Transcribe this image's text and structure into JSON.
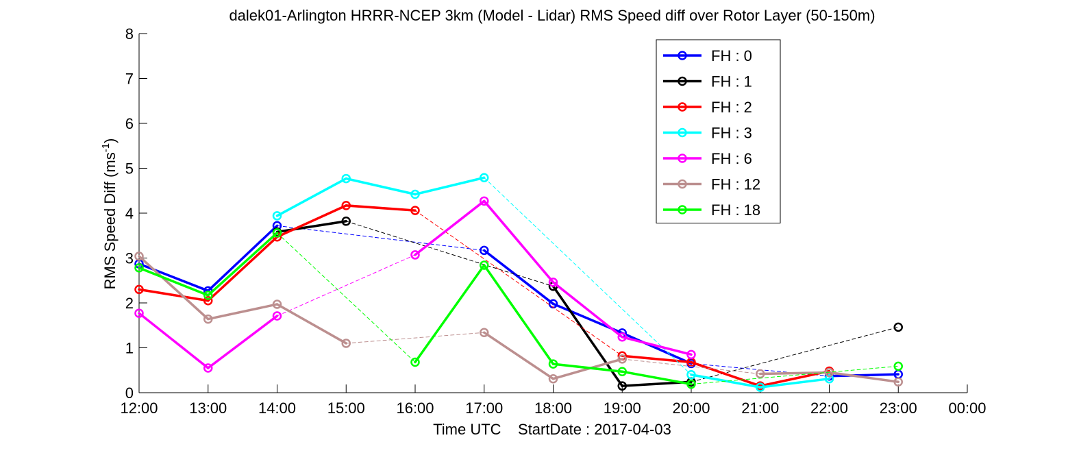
{
  "chart_data": {
    "type": "line",
    "title": "dalek01-Arlington HRRR-NCEP 3km (Model - Lidar) RMS Speed diff over Rotor Layer (50-150m)",
    "xlabel": "Time UTC    StartDate : 2017-04-03",
    "ylabel_main": "RMS Speed Diff (ms",
    "ylabel_sup": "-1",
    "ylabel_close": ")",
    "ylim": [
      0,
      8
    ],
    "yticks": [
      "0",
      "1",
      "2",
      "3",
      "4",
      "5",
      "6",
      "7",
      "8"
    ],
    "xticks": [
      "12:00",
      "13:00",
      "14:00",
      "15:00",
      "16:00",
      "17:00",
      "18:00",
      "19:00",
      "20:00",
      "21:00",
      "22:00",
      "23:00",
      "00:00"
    ],
    "grid": false,
    "legend_position": "top-right",
    "series": [
      {
        "name": "FH : 0",
        "color": "#0000ff",
        "values": [
          2.87,
          2.27,
          3.72,
          null,
          null,
          3.17,
          1.98,
          1.33,
          0.65,
          null,
          0.37,
          0.41
        ]
      },
      {
        "name": "FH : 1",
        "color": "#000000",
        "values": [
          null,
          null,
          3.58,
          3.82,
          null,
          null,
          2.37,
          0.15,
          0.24,
          null,
          null,
          1.46
        ]
      },
      {
        "name": "FH : 2",
        "color": "#ff0000",
        "values": [
          2.3,
          2.05,
          3.47,
          4.17,
          4.06,
          null,
          null,
          0.82,
          0.68,
          0.15,
          0.48,
          null
        ]
      },
      {
        "name": "FH : 3",
        "color": "#00ffff",
        "values": [
          null,
          null,
          3.94,
          4.77,
          4.42,
          4.79,
          null,
          null,
          0.4,
          0.12,
          0.31,
          null
        ]
      },
      {
        "name": "FH : 6",
        "color": "#ff00ff",
        "values": [
          1.77,
          0.55,
          1.71,
          null,
          3.07,
          4.27,
          2.46,
          1.24,
          0.85,
          null,
          null,
          null
        ]
      },
      {
        "name": "FH : 12",
        "color": "#bc8f8f",
        "values": [
          3.04,
          1.64,
          1.97,
          1.1,
          null,
          1.34,
          0.31,
          0.75,
          null,
          0.42,
          0.45,
          0.24
        ]
      },
      {
        "name": "FH : 18",
        "color": "#00ff00",
        "values": [
          2.78,
          2.17,
          3.56,
          null,
          0.68,
          2.84,
          0.64,
          0.47,
          0.19,
          null,
          null,
          0.59
        ]
      }
    ]
  }
}
